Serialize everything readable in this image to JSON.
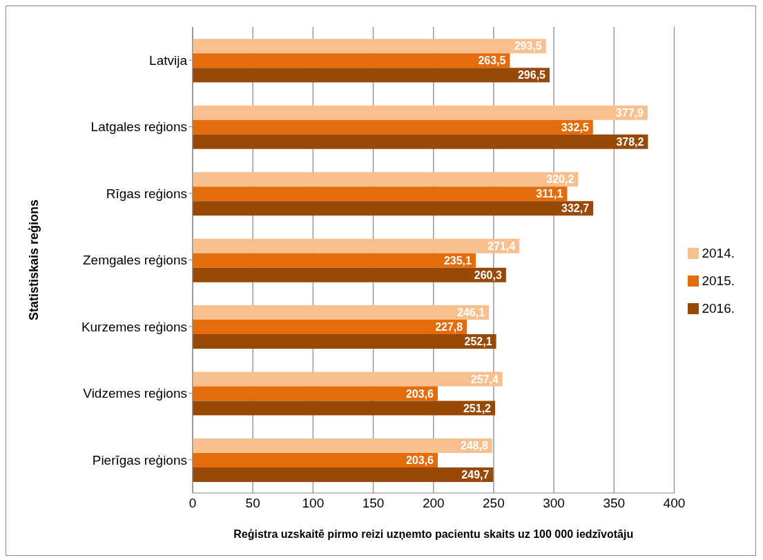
{
  "chart_data": {
    "type": "bar",
    "orientation": "horizontal",
    "ylabel": "Statistiskais reģions",
    "xlabel": "Reģistra uzskaitē pirmo reizi uzņemto pacientu skaits uz 100 000 iedzīvotāju",
    "categories": [
      "Latvija",
      "Latgales reģions",
      "Rīgas reģions",
      "Zemgales reģions",
      "Kurzemes reģions",
      "Vidzemes reģions",
      "Pierīgas reģions"
    ],
    "series": [
      {
        "name": "2014.",
        "color": "#f9c08f",
        "values": [
          293.5,
          377.9,
          320.2,
          271.4,
          246.1,
          257.4,
          248.8
        ],
        "value_labels": [
          "293,5",
          "377,9",
          "320,2",
          "271,4",
          "246,1",
          "257,4",
          "248,8"
        ]
      },
      {
        "name": "2015.",
        "color": "#e46c0a",
        "values": [
          263.5,
          332.5,
          311.1,
          235.1,
          227.8,
          203.6,
          203.6
        ],
        "value_labels": [
          "263,5",
          "332,5",
          "311,1",
          "235,1",
          "227,8",
          "203,6",
          "203,6"
        ]
      },
      {
        "name": "2016.",
        "color": "#984807",
        "values": [
          296.5,
          378.2,
          332.7,
          260.3,
          252.1,
          251.2,
          249.7
        ],
        "value_labels": [
          "296,5",
          "378,2",
          "332,7",
          "260,3",
          "252,1",
          "251,2",
          "249,7"
        ]
      }
    ],
    "xlim": [
      0,
      400
    ],
    "xticks": [
      0,
      50,
      100,
      150,
      200,
      250,
      300,
      350,
      400
    ],
    "grid": "x",
    "legend": "right"
  }
}
